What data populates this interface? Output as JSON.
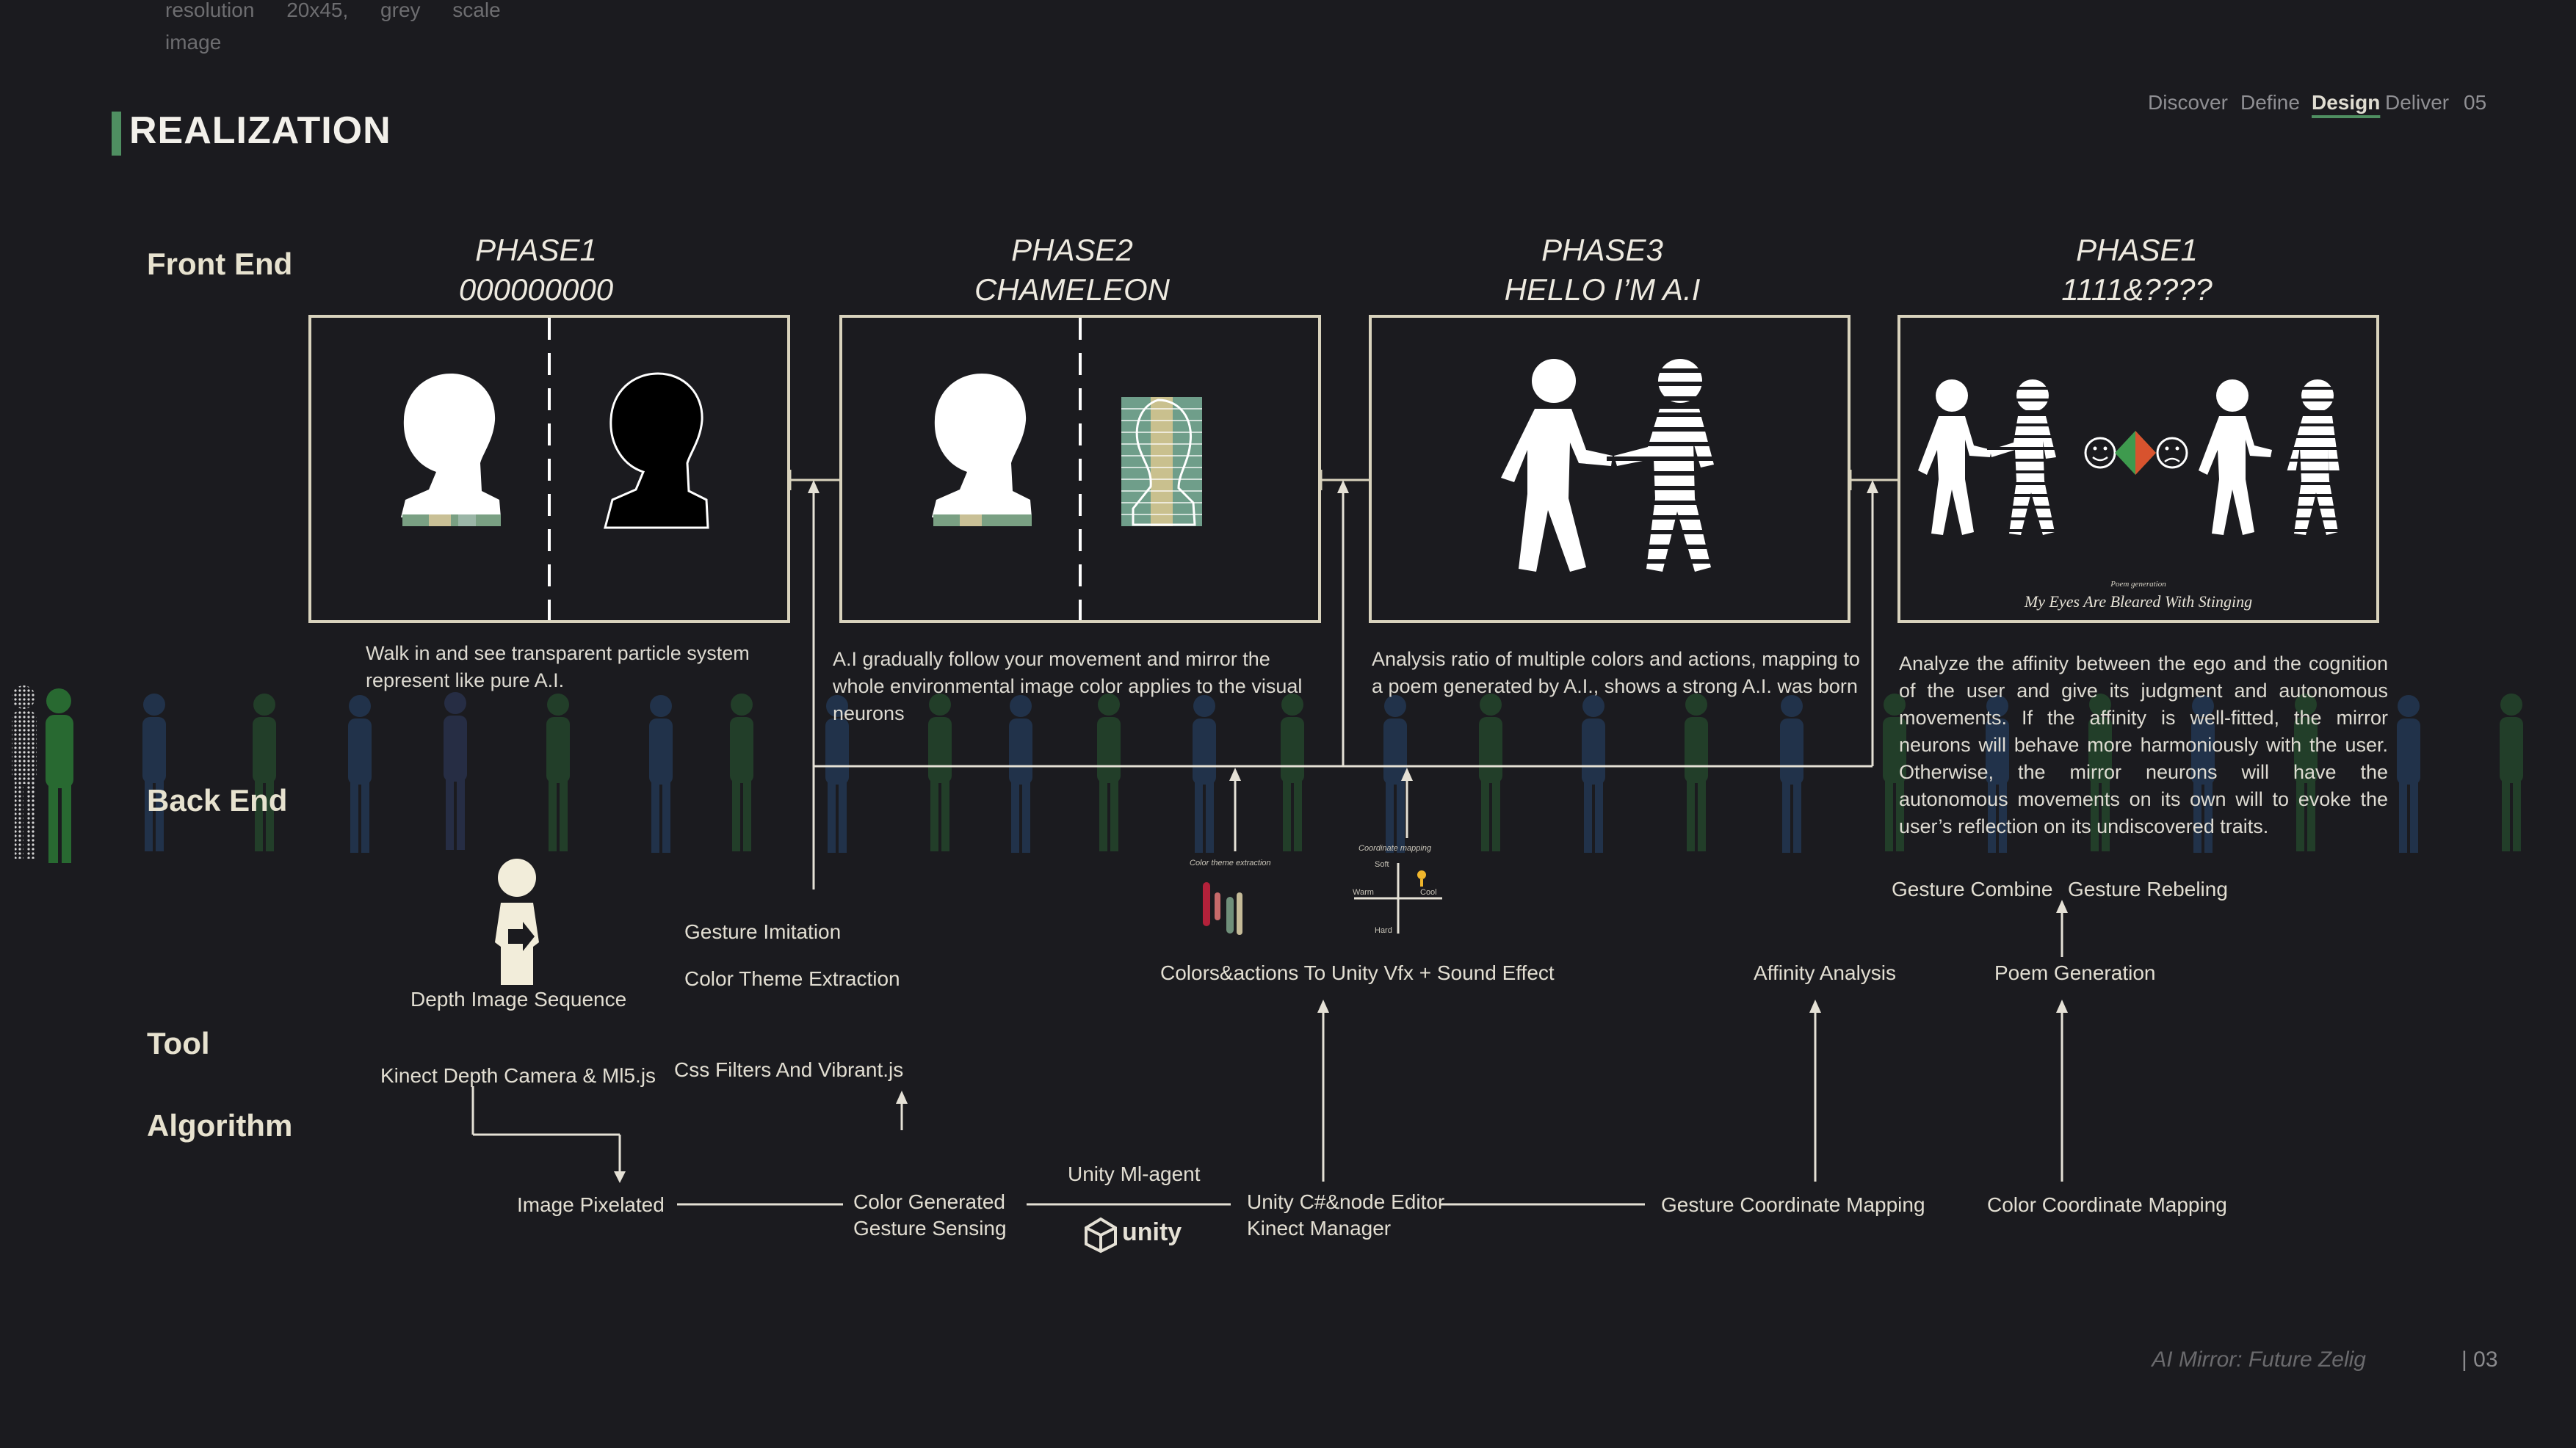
{
  "top_note": {
    "words": [
      "resolution",
      "20x45,",
      "grey",
      "scale",
      "image"
    ]
  },
  "section_title": "REALIZATION",
  "nav": {
    "items": [
      "Discover",
      "Define",
      "Design",
      "Deliver"
    ],
    "active": "Design",
    "number": "05"
  },
  "rows": {
    "front_end": "Front End",
    "back_end": "Back End",
    "tool": "Tool",
    "algorithm": "Algorithm"
  },
  "phases": [
    {
      "title": "PHASE1",
      "subtitle": "000000000",
      "description": "Walk in and see transparent particle system represent like pure A.I."
    },
    {
      "title": "PHASE2",
      "subtitle": "CHAMELEON",
      "description": "A.I gradually follow your movement and mirror the whole environmental image color applies to the visual neurons"
    },
    {
      "title": "PHASE3",
      "subtitle": "HELLO I’M A.I",
      "description": "Analysis ratio of multiple colors and actions, mapping to a poem generated by A.I., shows a strong A.I. was born"
    },
    {
      "title": "PHASE1",
      "subtitle": "1111&????",
      "description": "Analyze the affinity between the ego and the cognition of the user and give its judgment and autonomous movements. If the affinity is well-fitted, the mirror neurons will behave more harmoniously with the user. Otherwise, the mirror neurons will have the autonomous movements on its own will to evoke the user’s reflection on its undiscovered traits."
    }
  ],
  "poem": {
    "caption": "Poem generation",
    "title": "My Eyes Are Bleared With Stinging"
  },
  "backend": {
    "depth_image_sequence": "Depth Image Sequence",
    "gesture_imitation": "Gesture Imitation",
    "color_theme_extraction": "Color Theme Extraction",
    "color_theme_caption": "Color theme extraction",
    "coordinate_caption": "Coordinate mapping",
    "coord_soft": "Soft",
    "coord_warm": "Warm",
    "coord_cool": "Cool",
    "coord_hard": "Hard",
    "colors_actions": "Colors&actions To Unity Vfx + Sound Effect",
    "affinity_analysis": "Affinity Analysis",
    "gesture_combine": "Gesture Combine",
    "gesture_rebeling": "Gesture Rebeling",
    "poem_generation": "Poem Generation"
  },
  "tools": {
    "kinect": "Kinect Depth Camera & Ml5.js",
    "css_filters": "Css  Filters And Vibrant.js"
  },
  "algorithm": {
    "image_pixelated": "Image Pixelated",
    "color_generated": "Color Generated",
    "gesture_sensing": "Gesture Sensing",
    "unity_ml_agent": "Unity Ml-agent",
    "unity_logo": "unity",
    "unity_editor": "Unity C#&node Editor",
    "kinect_manager": "Kinect Manager",
    "gesture_coordinate_mapping": "Gesture Coordinate Mapping",
    "color_coordinate_mapping": "Color Coordinate Mapping"
  },
  "footer": {
    "project": "AI Mirror: Future Zelig",
    "page": "| 03"
  },
  "colors": {
    "background": "#1b1b1f",
    "accent": "#4f8f61",
    "panel_border": "#d9d3bd",
    "text": "#e8e4d8",
    "muted": "#6d6d70"
  }
}
